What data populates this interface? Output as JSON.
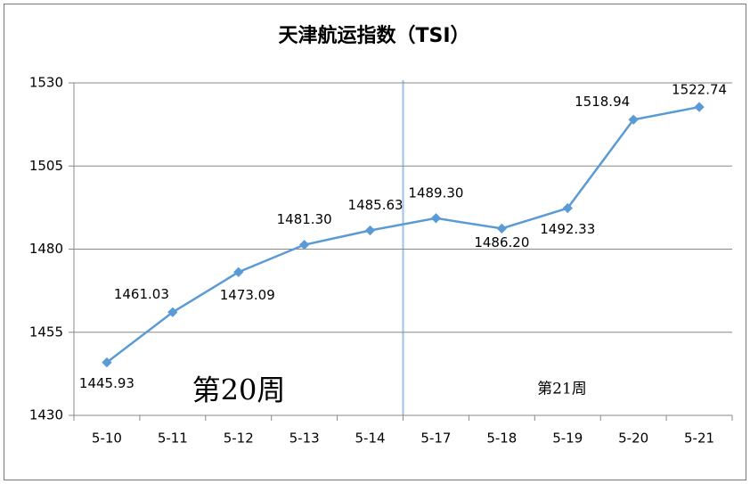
{
  "chart_data": {
    "type": "line",
    "title": "天津航运指数（TSI）",
    "categories": [
      "5-10",
      "5-11",
      "5-12",
      "5-13",
      "5-14",
      "5-17",
      "5-18",
      "5-19",
      "5-20",
      "5-21"
    ],
    "values": [
      1445.93,
      1461.03,
      1473.09,
      1481.3,
      1485.63,
      1489.3,
      1486.2,
      1492.33,
      1518.94,
      1522.74
    ],
    "value_labels": [
      "1445.93",
      "1461.03",
      "1473.09",
      "1481.30",
      "1485.63",
      "1489.30",
      "1486.20",
      "1492.33",
      "1518.94",
      "1522.74"
    ],
    "color": "#5b9bd5",
    "ylim": [
      1430,
      1530
    ],
    "yticks": [
      1430,
      1455,
      1480,
      1505,
      1530
    ],
    "grid": true,
    "annotations": [
      "第20周",
      "第21周"
    ]
  }
}
